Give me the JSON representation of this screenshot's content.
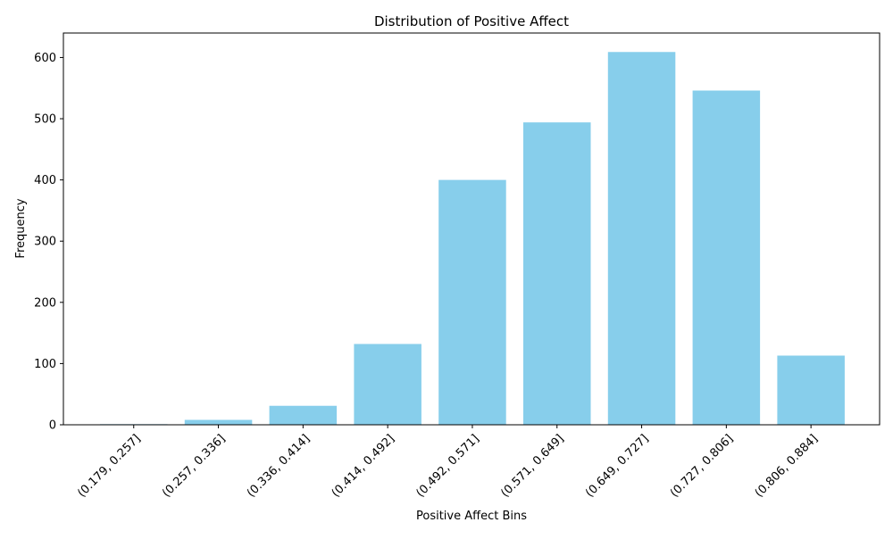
{
  "chart_data": {
    "type": "bar",
    "title": "Distribution of Positive Affect",
    "xlabel": "Positive Affect Bins",
    "ylabel": "Frequency",
    "categories": [
      "(0.179, 0.257]",
      "(0.257, 0.336]",
      "(0.336, 0.414]",
      "(0.414, 0.492]",
      "(0.492, 0.571]",
      "(0.571, 0.649]",
      "(0.649, 0.727]",
      "(0.727, 0.806]",
      "(0.806, 0.884]"
    ],
    "values": [
      1,
      8,
      31,
      132,
      400,
      494,
      609,
      546,
      113
    ],
    "ylim": [
      0,
      640
    ],
    "yticks": [
      0,
      100,
      200,
      300,
      400,
      500,
      600
    ],
    "bar_color": "#87CEEB",
    "grid": false,
    "legend": false
  }
}
